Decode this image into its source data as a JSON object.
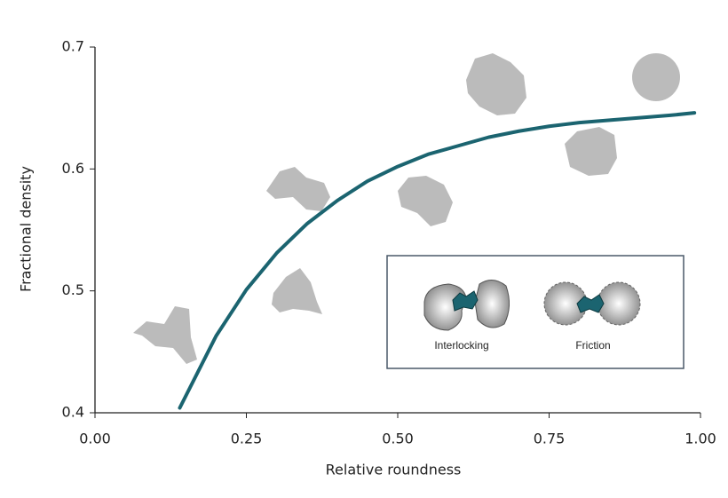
{
  "chart_data": {
    "type": "line",
    "xlabel": "Relative roundness",
    "ylabel": "Fractional density",
    "annotations": [
      "Interlocking",
      "Friction"
    ],
    "x": [
      0.14,
      0.2,
      0.25,
      0.3,
      0.35,
      0.4,
      0.45,
      0.5,
      0.55,
      0.6,
      0.65,
      0.7,
      0.75,
      0.8,
      0.85,
      0.9,
      0.95,
      0.99
    ],
    "values": [
      0.404,
      0.463,
      0.501,
      0.531,
      0.555,
      0.574,
      0.59,
      0.602,
      0.612,
      0.619,
      0.626,
      0.631,
      0.635,
      0.638,
      0.64,
      0.642,
      0.644,
      0.646
    ],
    "color": "#1b6470",
    "xlim": [
      0,
      1
    ],
    "ylim": [
      0.4,
      0.7
    ],
    "xticks": [
      {
        "value": 0,
        "label": "0.00"
      },
      {
        "value": 0.25,
        "label": "0.25"
      },
      {
        "value": 0.5,
        "label": "0.50"
      },
      {
        "value": 0.75,
        "label": "0.75"
      },
      {
        "value": 1,
        "label": "1.00"
      }
    ],
    "yticks": [
      0.4,
      0.5,
      0.6,
      0.7
    ],
    "grid": false
  }
}
